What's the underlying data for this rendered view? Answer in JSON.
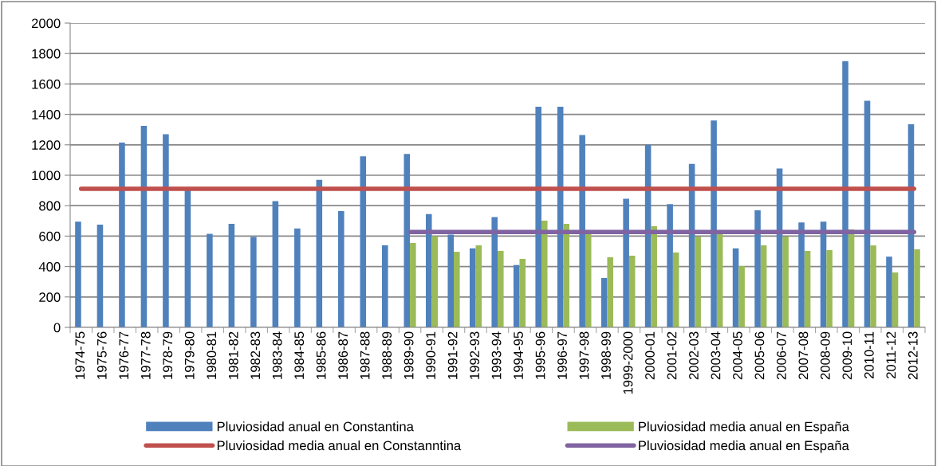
{
  "chart_data": {
    "type": "bar",
    "categories": [
      "1974-75",
      "1975-76",
      "1976-77",
      "1977-78",
      "1978-79",
      "1979-80",
      "1980-81",
      "1981-82",
      "1982-83",
      "1983-84",
      "1984-85",
      "1985-86",
      "1986-87",
      "1987-88",
      "1988-89",
      "1989-90",
      "1990-91",
      "1991-92",
      "1992-93",
      "1993-94",
      "1994-95",
      "1995-96",
      "1996-97",
      "1997-98",
      "1998-99",
      "1999-2000",
      "2000-01",
      "2001-02",
      "2002-03",
      "2003-04",
      "2004-05",
      "2005-06",
      "2006-07",
      "2007-08",
      "2008-09",
      "2009-10",
      "2010-11",
      "2011-12",
      "2012-13"
    ],
    "series": [
      {
        "name": "Pluviosidad anual en Constantina",
        "color": "#4f81bd",
        "values": [
          695,
          675,
          1215,
          1325,
          1270,
          905,
          615,
          680,
          595,
          830,
          650,
          970,
          765,
          1125,
          540,
          1140,
          745,
          610,
          520,
          725,
          410,
          1450,
          1450,
          1265,
          325,
          845,
          1200,
          810,
          1075,
          1360,
          520,
          770,
          1045,
          690,
          695,
          1750,
          1490,
          465,
          1335
        ]
      },
      {
        "name": "Pluviosidad media anual en España",
        "color": "#9bbb59",
        "values": [
          null,
          null,
          null,
          null,
          null,
          null,
          null,
          null,
          null,
          null,
          null,
          null,
          null,
          null,
          null,
          555,
          600,
          497,
          539,
          503,
          450,
          702,
          681,
          613,
          461,
          471,
          665,
          492,
          597,
          618,
          403,
          539,
          597,
          503,
          508,
          644,
          539,
          361,
          513
        ]
      },
      {
        "name": "Pluviosidad media anual en Constanntina",
        "color": "#c0504d",
        "type": "line",
        "values": [
          911,
          911,
          911,
          911,
          911,
          911,
          911,
          911,
          911,
          911,
          911,
          911,
          911,
          911,
          911,
          911,
          911,
          911,
          911,
          911,
          911,
          911,
          911,
          911,
          911,
          911,
          911,
          911,
          911,
          911,
          911,
          911,
          911,
          911,
          911,
          911,
          911,
          911,
          911
        ]
      },
      {
        "name": "Pluviosidad media anual en España",
        "color": "#8064a2",
        "type": "line",
        "values": [
          null,
          null,
          null,
          null,
          null,
          null,
          null,
          null,
          null,
          null,
          null,
          null,
          null,
          null,
          null,
          627,
          627,
          627,
          627,
          627,
          627,
          627,
          627,
          627,
          627,
          627,
          627,
          627,
          627,
          627,
          627,
          627,
          627,
          627,
          627,
          627,
          627,
          627,
          627
        ]
      }
    ],
    "ylim": [
      0,
      2000
    ],
    "yticks": [
      0,
      200,
      400,
      600,
      800,
      1000,
      1200,
      1400,
      1600,
      1800,
      2000
    ],
    "grid": "y",
    "legend": "bottom"
  }
}
